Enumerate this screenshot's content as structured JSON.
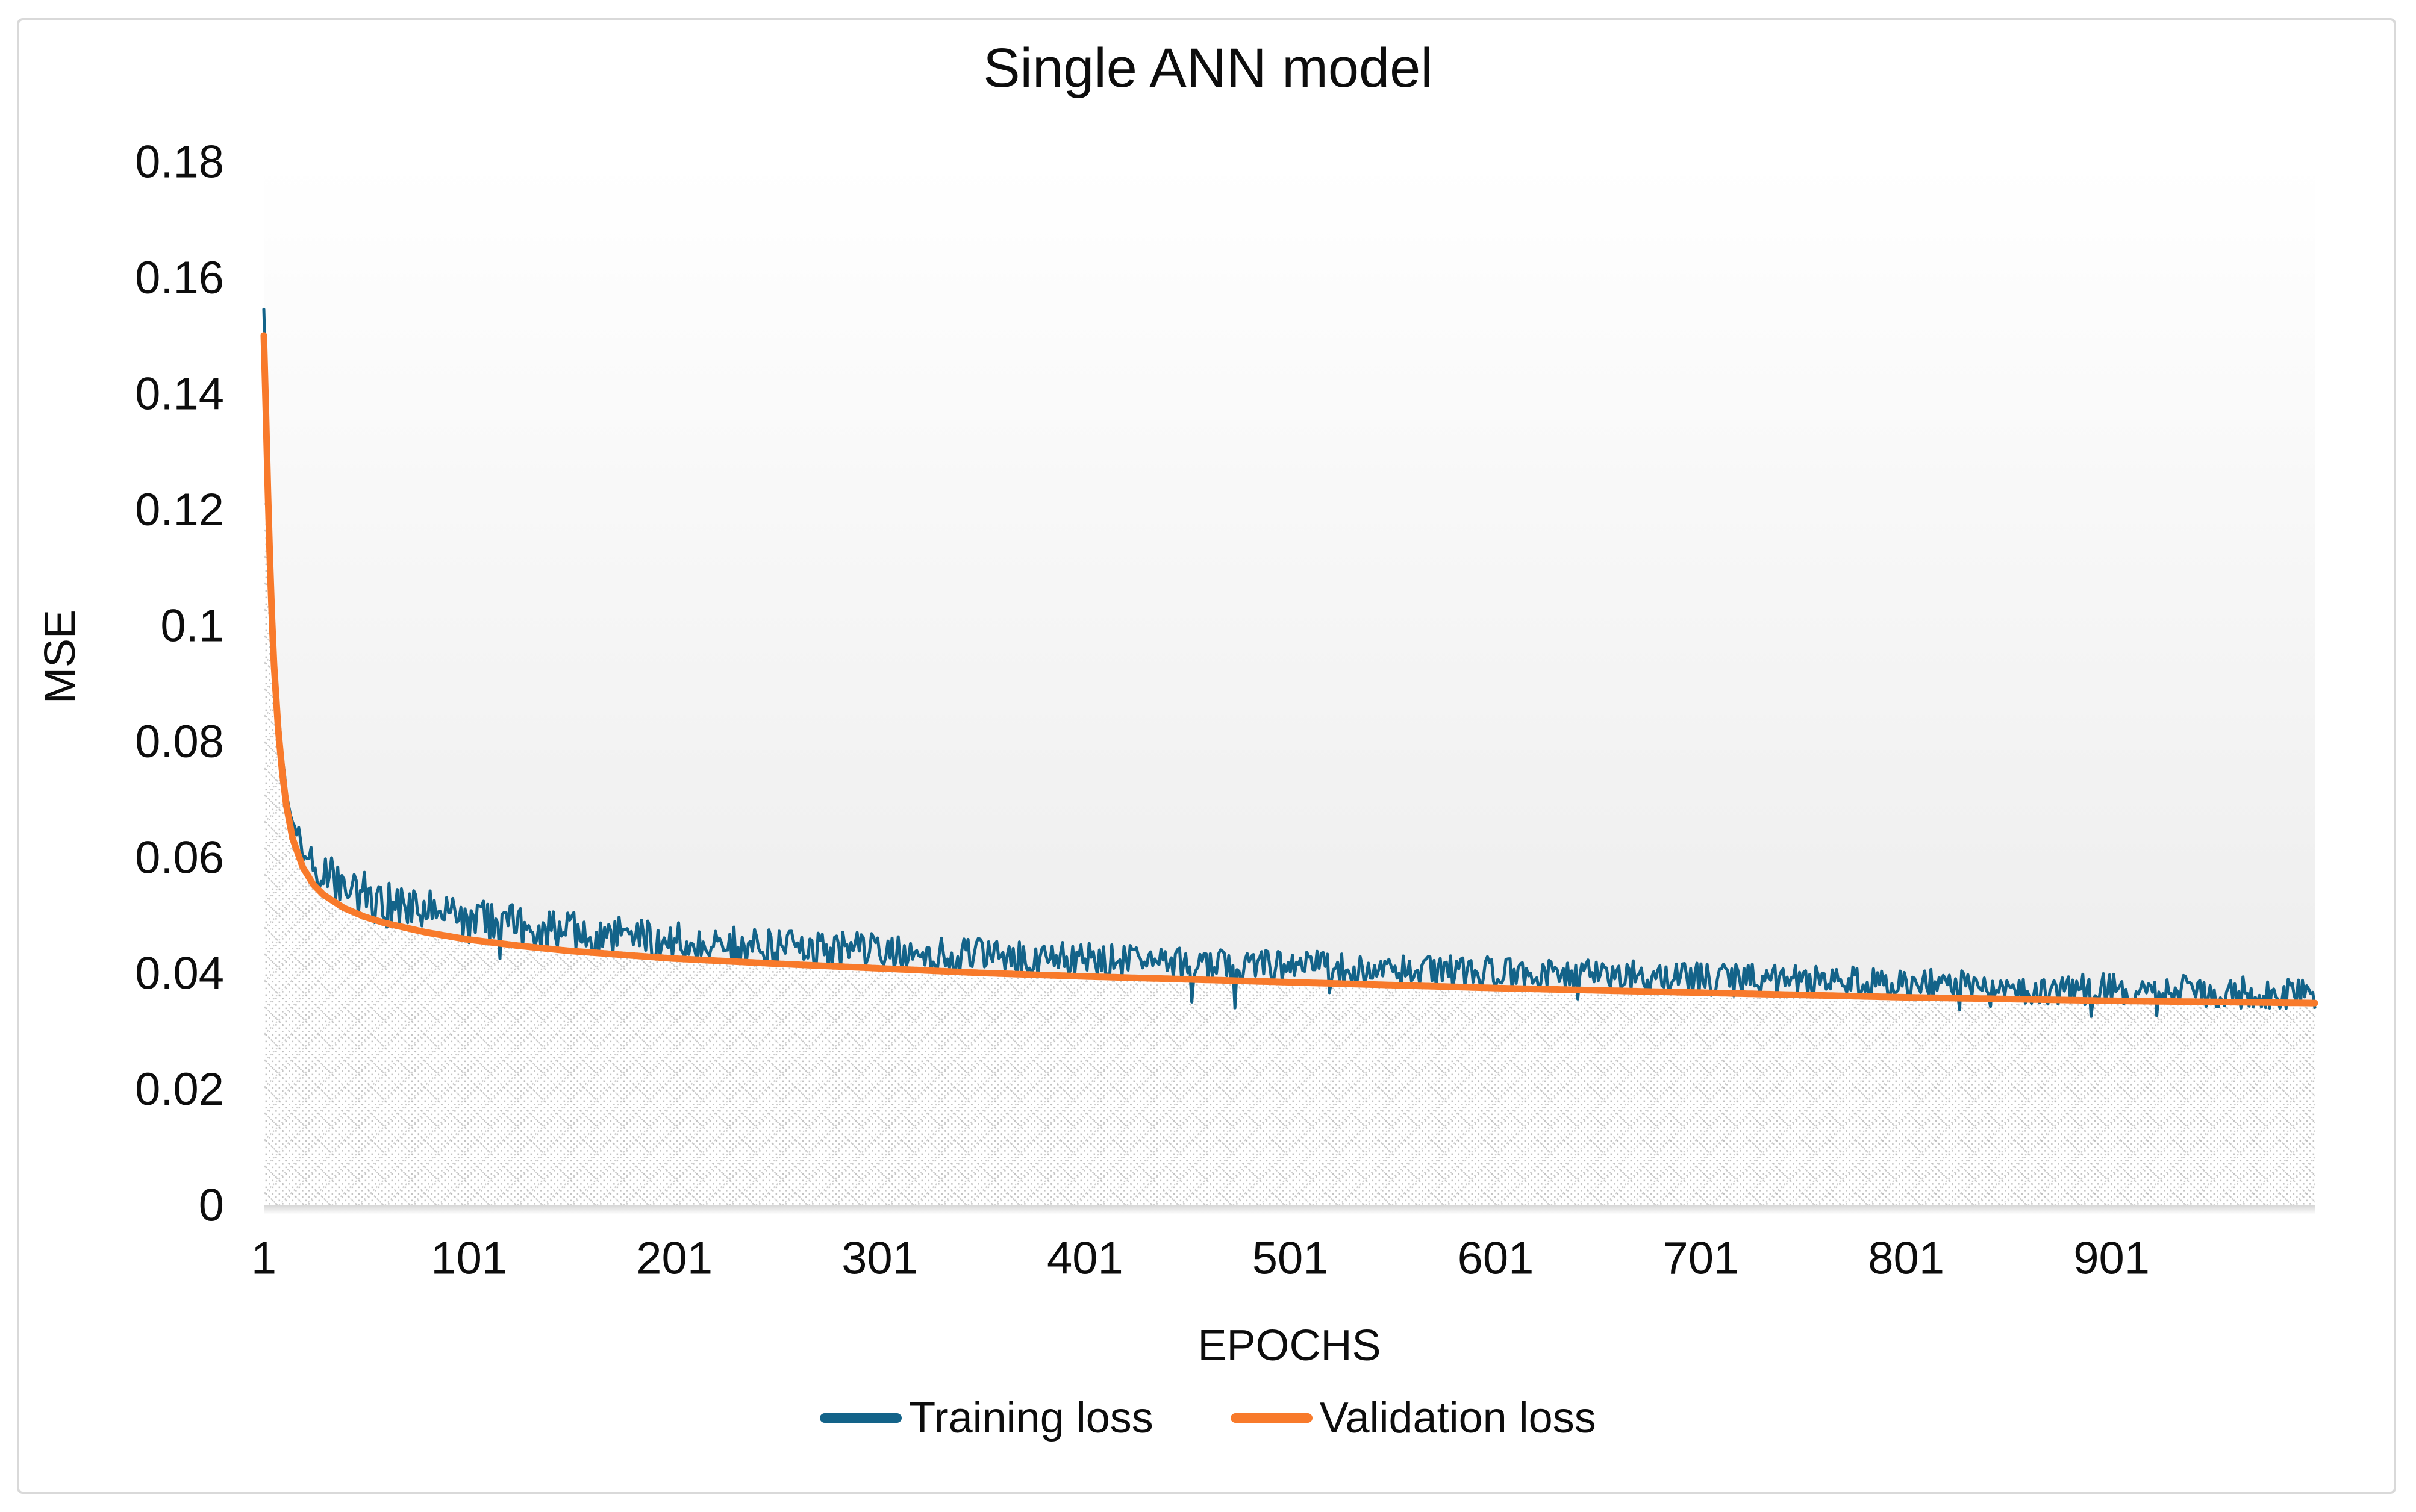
{
  "figure": {
    "title": "Single ANN model",
    "x_axis_title": "EPOCHS",
    "y_axis_title": "MSE",
    "background": "#ffffff",
    "frame_border_color": "#d9d9d9"
  },
  "legend": {
    "position": "bottom-center",
    "items": [
      {
        "label": "Training loss",
        "color": "#136389"
      },
      {
        "label": "Validation loss",
        "color": "#F87A2B"
      }
    ]
  },
  "chart_data": {
    "type": "line",
    "title": "Single ANN model",
    "xlabel": "EPOCHS",
    "ylabel": "MSE",
    "xlim": [
      1,
      1000
    ],
    "ylim": [
      0,
      0.18
    ],
    "x_ticks": [
      1,
      101,
      201,
      301,
      401,
      501,
      601,
      701,
      801,
      901
    ],
    "y_ticks": [
      0,
      0.02,
      0.04,
      0.06,
      0.08,
      0.1,
      0.12,
      0.14,
      0.16,
      0.18
    ],
    "grid": false,
    "legend_position": "bottom",
    "plot_background": {
      "type": "vertical-gradient",
      "from": "#ffffff",
      "to": "#e9e9e9"
    },
    "area_pattern": {
      "under_series": "Validation loss",
      "style": "dotted-diamond-grid",
      "dot_color": "#c3c3c3",
      "cross_color": "#b5b5b5",
      "background": "#ffffff"
    },
    "series": [
      {
        "name": "Training loss",
        "color": "#136389",
        "line_width": 5,
        "style": "noisy",
        "trend_anchors": [
          [
            1,
            0.1545
          ],
          [
            2,
            0.142
          ],
          [
            3,
            0.128
          ],
          [
            4,
            0.116
          ],
          [
            5,
            0.105
          ],
          [
            6,
            0.0965
          ],
          [
            8,
            0.0855
          ],
          [
            10,
            0.0775
          ],
          [
            12,
            0.0715
          ],
          [
            15,
            0.0658
          ],
          [
            20,
            0.0608
          ],
          [
            25,
            0.058
          ],
          [
            30,
            0.0562
          ],
          [
            40,
            0.054
          ],
          [
            50,
            0.0525
          ],
          [
            60,
            0.0513
          ],
          [
            80,
            0.0496
          ],
          [
            100,
            0.0483
          ],
          [
            125,
            0.0471
          ],
          [
            150,
            0.0462
          ],
          [
            200,
            0.0448
          ],
          [
            250,
            0.0439
          ],
          [
            300,
            0.0431
          ],
          [
            350,
            0.0424
          ],
          [
            400,
            0.0417
          ],
          [
            450,
            0.0411
          ],
          [
            500,
            0.0405
          ],
          [
            550,
            0.0399
          ],
          [
            600,
            0.0394
          ],
          [
            650,
            0.0389
          ],
          [
            700,
            0.0384
          ],
          [
            750,
            0.0379
          ],
          [
            800,
            0.0374
          ],
          [
            850,
            0.037
          ],
          [
            900,
            0.0366
          ],
          [
            950,
            0.0362
          ],
          [
            1000,
            0.0358
          ]
        ],
        "noise": {
          "base_amplitude": 0.0028,
          "extra_early_amplitude": 0.0022,
          "early_decay_epochs": 150,
          "ramp_start_epoch": 5,
          "ramp_length": 30,
          "dip_chance": 0.03,
          "dip_magnitude": 0.006
        }
      },
      {
        "name": "Validation loss",
        "color": "#F87A2B",
        "line_width": 11,
        "style": "smooth",
        "trend_anchors": [
          [
            1,
            0.15
          ],
          [
            2,
            0.137
          ],
          [
            3,
            0.123
          ],
          [
            4,
            0.111
          ],
          [
            5,
            0.101
          ],
          [
            6,
            0.093
          ],
          [
            8,
            0.082
          ],
          [
            10,
            0.0745
          ],
          [
            12,
            0.0688
          ],
          [
            15,
            0.0632
          ],
          [
            20,
            0.0582
          ],
          [
            25,
            0.0553
          ],
          [
            30,
            0.0535
          ],
          [
            40,
            0.0512
          ],
          [
            50,
            0.0497
          ],
          [
            60,
            0.0486
          ],
          [
            80,
            0.047
          ],
          [
            100,
            0.0458
          ],
          [
            125,
            0.0447
          ],
          [
            150,
            0.0438
          ],
          [
            200,
            0.0425
          ],
          [
            250,
            0.0416
          ],
          [
            300,
            0.0408
          ],
          [
            350,
            0.04
          ],
          [
            400,
            0.0394
          ],
          [
            450,
            0.0389
          ],
          [
            500,
            0.0384
          ],
          [
            550,
            0.0379
          ],
          [
            600,
            0.0374
          ],
          [
            650,
            0.037
          ],
          [
            700,
            0.0366
          ],
          [
            750,
            0.0362
          ],
          [
            800,
            0.0358
          ],
          [
            850,
            0.0355
          ],
          [
            900,
            0.0352
          ],
          [
            950,
            0.035
          ],
          [
            1000,
            0.0348
          ]
        ]
      }
    ]
  }
}
